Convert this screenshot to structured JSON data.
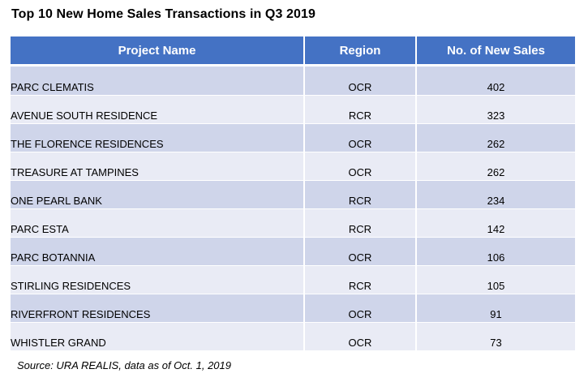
{
  "title": "Top 10 New Home Sales Transactions in Q3 2019",
  "columns": {
    "project": "Project Name",
    "region": "Region",
    "sales": "No. of New Sales"
  },
  "rows": [
    {
      "project": "PARC CLEMATIS",
      "region": "OCR",
      "sales": "402"
    },
    {
      "project": "AVENUE SOUTH RESIDENCE",
      "region": "RCR",
      "sales": "323"
    },
    {
      "project": "THE FLORENCE RESIDENCES",
      "region": "OCR",
      "sales": "262"
    },
    {
      "project": "TREASURE AT TAMPINES",
      "region": "OCR",
      "sales": "262"
    },
    {
      "project": "ONE PEARL BANK",
      "region": "RCR",
      "sales": "234"
    },
    {
      "project": "PARC ESTA",
      "region": "RCR",
      "sales": "142"
    },
    {
      "project": "PARC BOTANNIA",
      "region": "OCR",
      "sales": "106"
    },
    {
      "project": "STIRLING RESIDENCES",
      "region": "RCR",
      "sales": "105"
    },
    {
      "project": "RIVERFRONT RESIDENCES",
      "region": "OCR",
      "sales": "91"
    },
    {
      "project": "WHISTLER GRAND",
      "region": "OCR",
      "sales": "73"
    }
  ],
  "source": "Source: URA REALIS, data as of Oct. 1, 2019",
  "colors": {
    "header": "#4472c4",
    "row_band_dark": "#cfd5ea",
    "row_band_light": "#e9ebf5"
  }
}
